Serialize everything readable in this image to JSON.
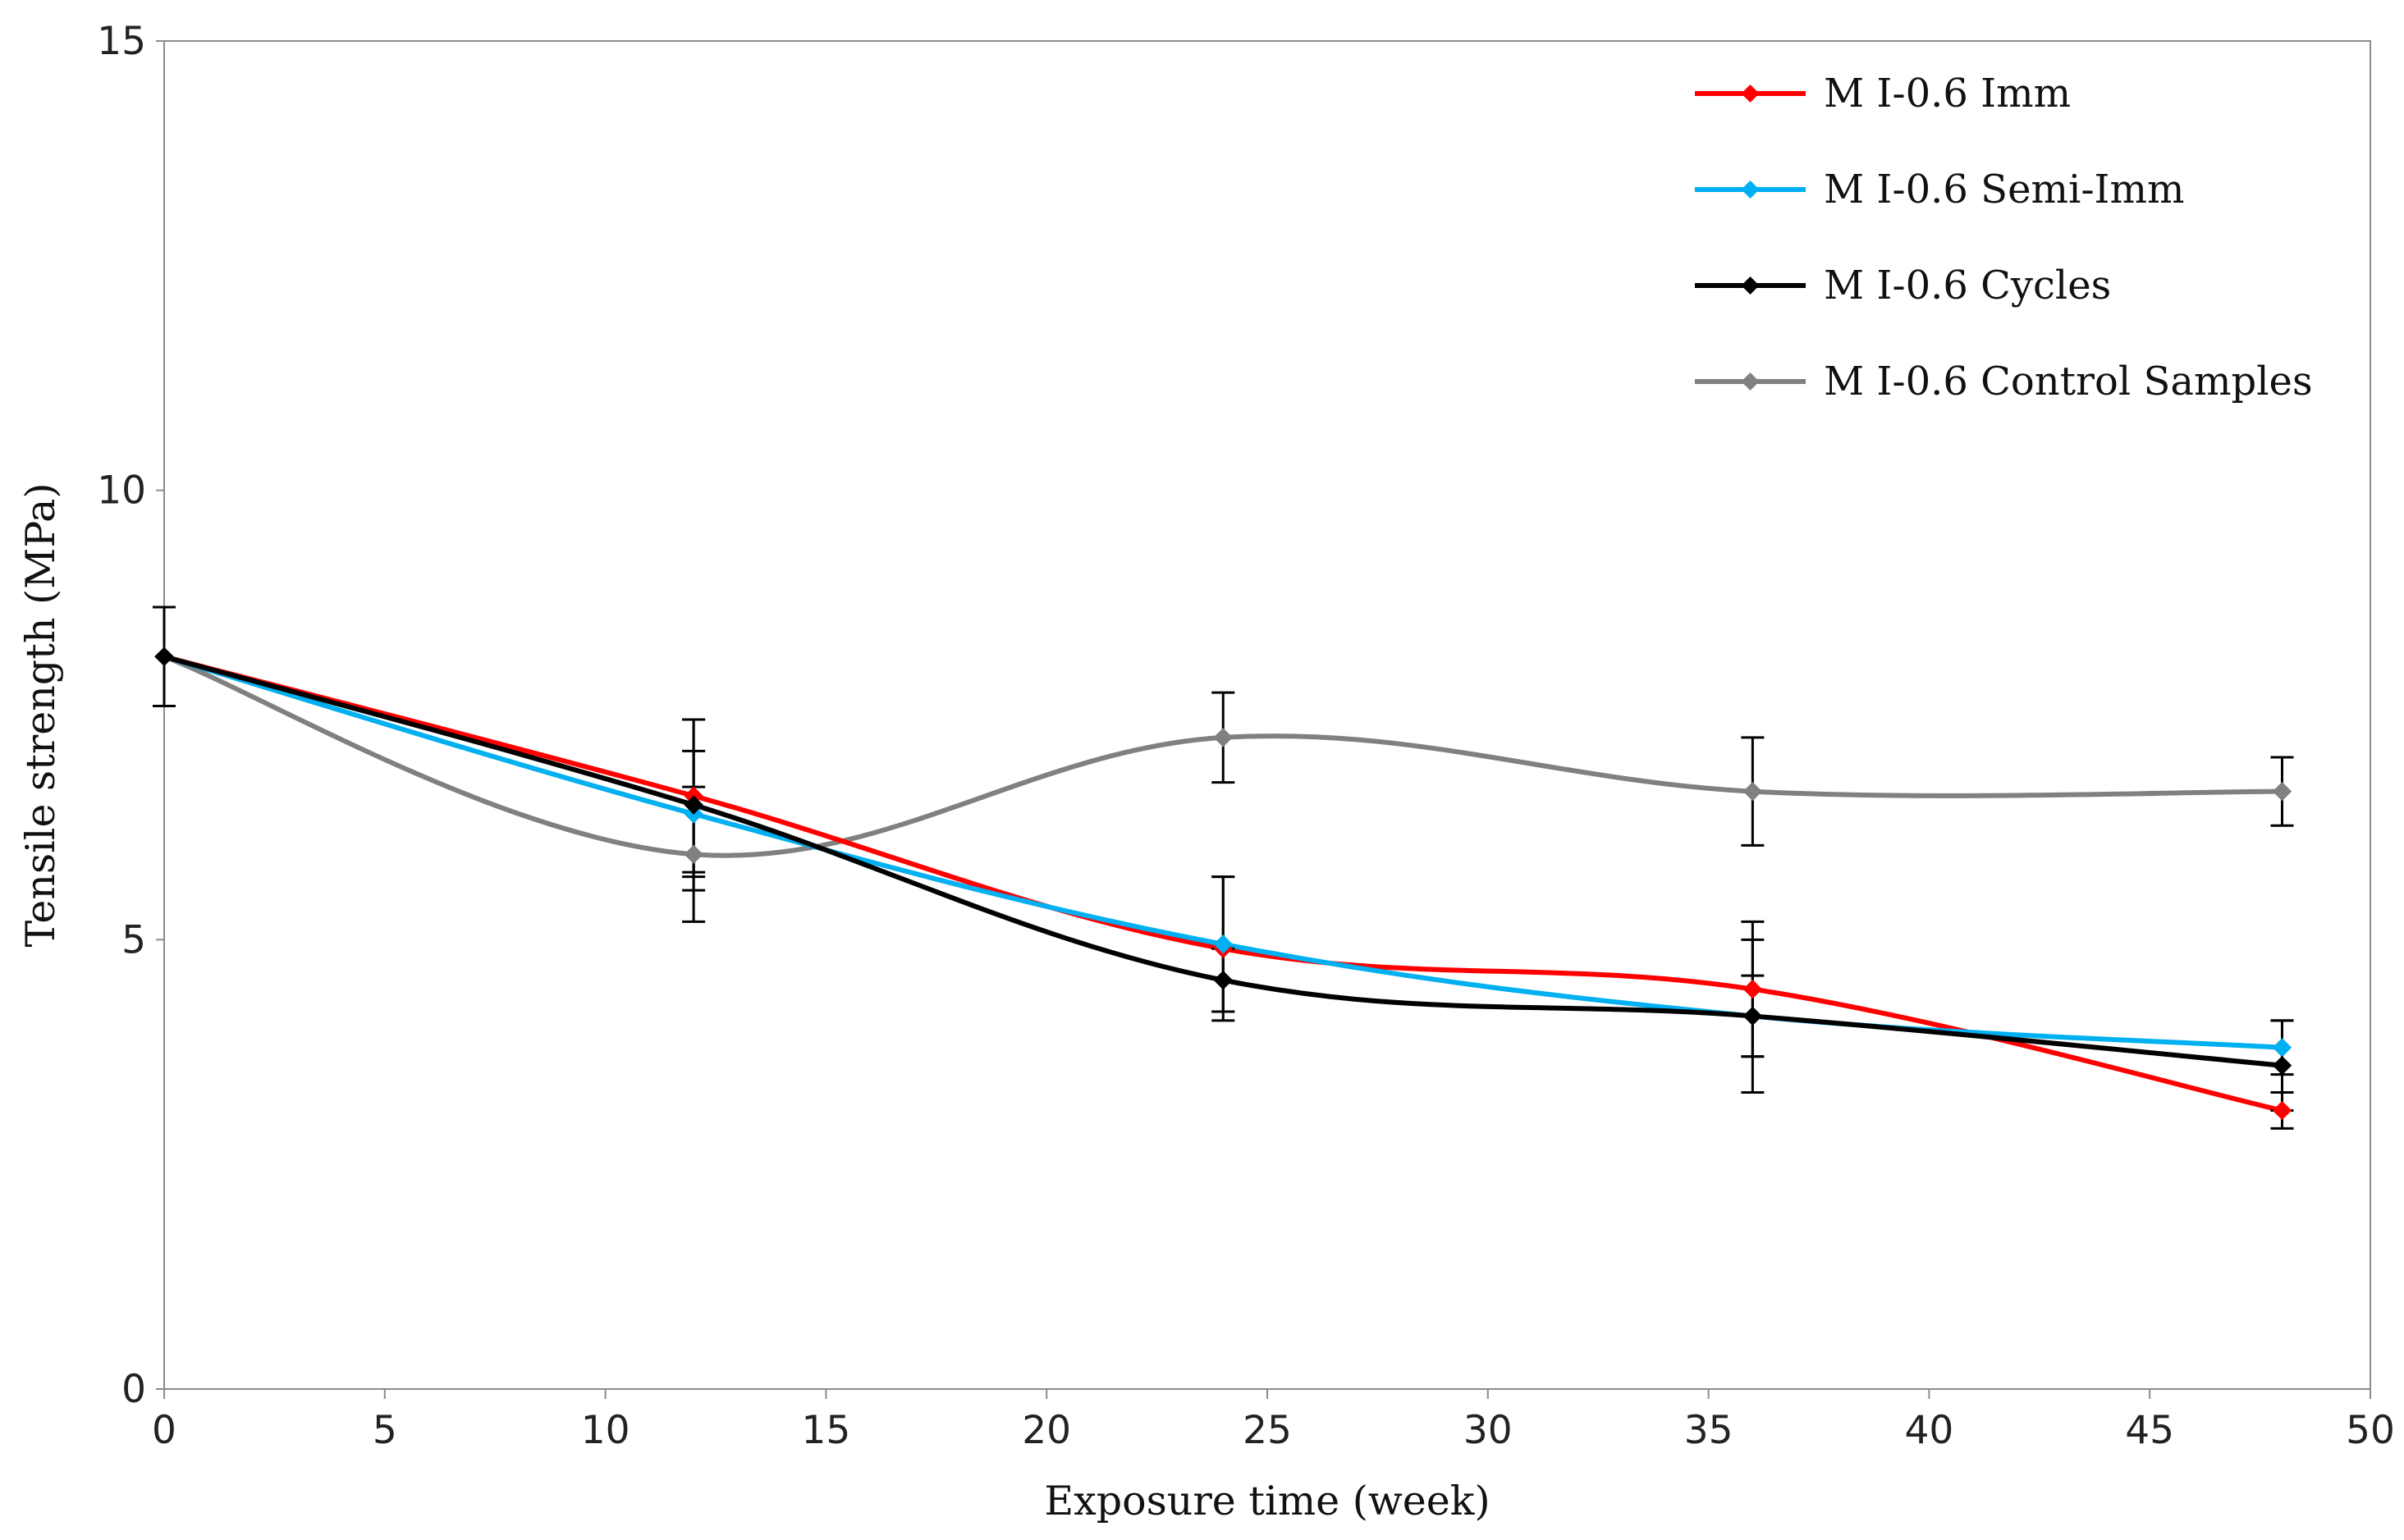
{
  "chart_data": {
    "type": "line",
    "title": "",
    "xlabel": "Exposure time (week)",
    "ylabel": "Tensile strength (MPa)",
    "xlim": [
      0,
      50
    ],
    "ylim": [
      0,
      15
    ],
    "x_ticks": [
      0,
      5,
      10,
      15,
      20,
      25,
      30,
      35,
      40,
      45,
      50
    ],
    "y_ticks": [
      0,
      5,
      10,
      15
    ],
    "grid": false,
    "legend_position": "top-right",
    "x": [
      0,
      12,
      24,
      36,
      48
    ],
    "series": [
      {
        "name": "M I-0.6 Imm",
        "color": "#ff0000",
        "values": [
          8.15,
          6.6,
          4.9,
          4.45,
          3.1
        ],
        "errors": [
          0.55,
          0.85,
          0.8,
          0.75,
          0.2
        ]
      },
      {
        "name": "M I-0.6 Semi-Imm",
        "color": "#00b0f0",
        "values": [
          8.15,
          6.4,
          4.95,
          4.15,
          3.8
        ],
        "errors": [
          0.55,
          0.7,
          0.75,
          0.85,
          0.3
        ]
      },
      {
        "name": "M I-0.6 Cycles",
        "color": "#000000",
        "values": [
          8.15,
          6.5,
          4.55,
          4.15,
          3.6
        ],
        "errors": [
          0.55,
          0.95,
          0.35,
          0.45,
          0.5
        ]
      },
      {
        "name": "M I-0.6 Control Samples",
        "color": "#808080",
        "values": [
          8.15,
          5.95,
          7.25,
          6.65,
          6.65
        ],
        "errors": [
          0.55,
          0.75,
          0.5,
          0.6,
          0.38
        ]
      }
    ]
  }
}
